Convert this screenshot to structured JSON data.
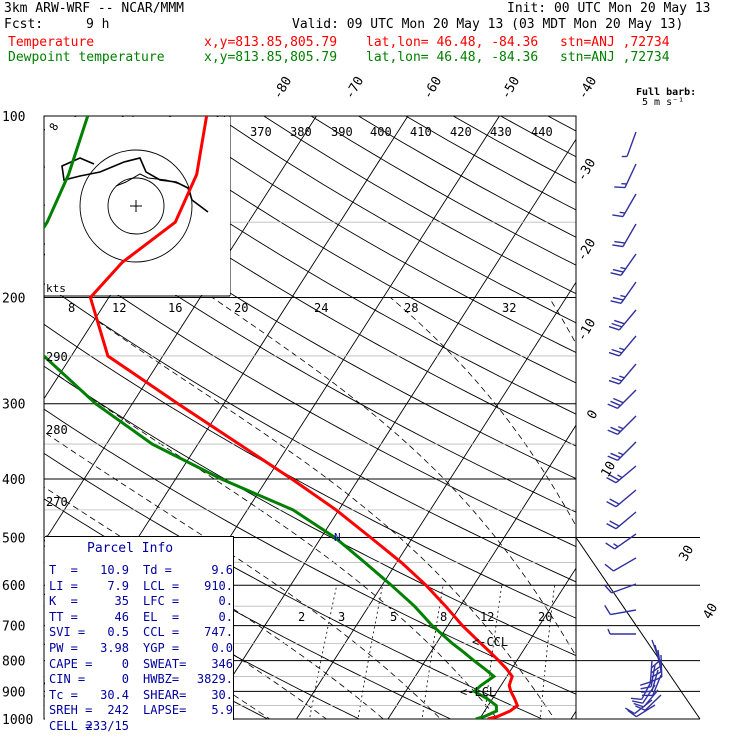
{
  "header": {
    "model": "3km ARW-WRF -- NCAR/MMM",
    "init": "Init: 00 UTC Mon 20 May 13",
    "fcst_label": "Fcst:",
    "fcst_hours": "9 h",
    "valid": "Valid: 09 UTC Mon 20 May 13 (03 MDT Mon 20 May 13)"
  },
  "legend": {
    "temp": {
      "label": "Temperature",
      "xy": "x,y=813.85,805.79",
      "latlon": "lat,lon= 46.48, -84.36",
      "stn": "stn=ANJ ,72734",
      "color": "#ff0000"
    },
    "dewp": {
      "label": "Dewpoint temperature",
      "xy": "x,y=813.85,805.79",
      "latlon": "lat,lon= 46.48, -84.36",
      "stn": "stn=ANJ ,72734",
      "color": "#008000"
    }
  },
  "barb_key": {
    "title": "Full barb:",
    "value": "5 m s⁻¹"
  },
  "hodograph": {
    "units": "kts",
    "ring_label": "8"
  },
  "parcel_info": {
    "title": "Parcel Info",
    "rows": [
      [
        "T  =",
        "10.9",
        "Td =",
        "9.6"
      ],
      [
        "LI =",
        "7.9",
        "LCL =",
        "910."
      ],
      [
        "K  =",
        "35",
        "LFC =",
        "0."
      ],
      [
        "TT =",
        "46",
        "EL  =",
        "0."
      ],
      [
        "SVI =",
        "0.5",
        "CCL =",
        "747."
      ],
      [
        "PW =",
        "3.98",
        "YGP =",
        "0.0"
      ],
      [
        "CAPE =",
        "0",
        "SWEAT=",
        "346"
      ],
      [
        "CIN =",
        "0",
        "HWBZ=",
        "3829."
      ],
      [
        "Tc =",
        "30.4",
        "SHEAR=",
        "30."
      ],
      [
        "SREH =",
        "242",
        "LAPSE=",
        "5.9"
      ],
      [
        "CELL =",
        "233/15",
        "",
        ""
      ]
    ]
  },
  "markers": {
    "ccl": "<-CCL",
    "lcl": "<-LCL",
    "n": "N"
  },
  "chart_data": {
    "type": "line",
    "pressure_ticks": [
      100,
      200,
      300,
      400,
      500,
      600,
      700,
      800,
      900,
      1000
    ],
    "isotherm_labels": [
      "-80",
      "-70",
      "-60",
      "-50",
      "-40",
      "-30",
      "-20",
      "-10",
      "0",
      "10",
      "30",
      "40"
    ],
    "theta_labels": [
      "370",
      "380",
      "390",
      "400",
      "410",
      "420",
      "430",
      "440"
    ],
    "theta_e_labels": [
      "290",
      "280",
      "270"
    ],
    "mixing_ratio_labels": [
      "2",
      "3",
      "5",
      "8",
      "12",
      "20"
    ],
    "hodo_speed_labels": [
      "8",
      "12",
      "16",
      "20",
      "24",
      "28",
      "32"
    ],
    "series": [
      {
        "name": "Temperature",
        "p": [
          1000,
          990,
          970,
          950,
          925,
          900,
          880,
          850,
          825,
          800,
          775,
          750,
          700,
          650,
          600,
          550,
          500,
          450,
          400,
          350,
          300,
          250,
          200,
          175,
          150,
          125,
          100
        ],
        "t": [
          10.9,
          11.8,
          12.8,
          13.2,
          12.4,
          11.5,
          10.9,
          10.6,
          9.4,
          8.0,
          6.5,
          4.9,
          1.6,
          -1.6,
          -5.2,
          -9.5,
          -14.6,
          -20.3,
          -27.3,
          -35.5,
          -45.0,
          -56.0,
          -62.0,
          -61.0,
          -58.0,
          -59.0,
          -62.0
        ]
      },
      {
        "name": "Dewpoint temperature",
        "p": [
          1000,
          990,
          970,
          950,
          925,
          900,
          880,
          850,
          825,
          800,
          775,
          750,
          700,
          650,
          600,
          550,
          500,
          450,
          400,
          350,
          300,
          250,
          200,
          175,
          150,
          125,
          100
        ],
        "t": [
          9.6,
          10.4,
          11.3,
          10.9,
          9.4,
          7.5,
          7.8,
          8.6,
          7.0,
          5.3,
          3.6,
          1.8,
          -1.7,
          -5.0,
          -9.0,
          -13.5,
          -18.5,
          -25.0,
          -35.0,
          -45.0,
          -54.0,
          -63.0,
          -71.0,
          -72.0,
          -72.0,
          -73.0,
          -75.0
        ]
      }
    ],
    "ylabel": "",
    "xlabel": ""
  }
}
